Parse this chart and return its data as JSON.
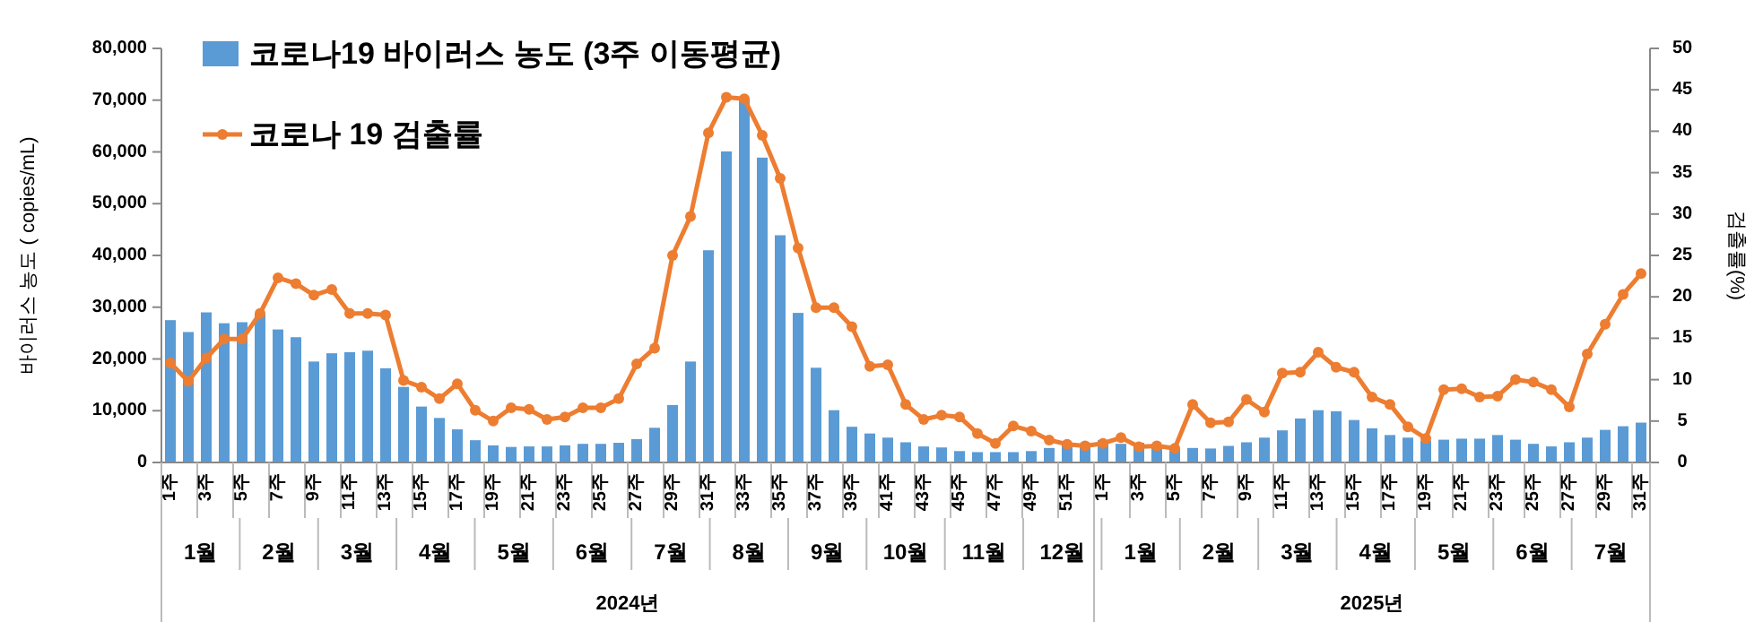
{
  "chart_data": {
    "type": "bar",
    "categories": [
      "1주",
      null,
      "3주",
      null,
      "5주",
      null,
      "7주",
      null,
      "9주",
      null,
      "11주",
      null,
      "13주",
      null,
      "15주",
      null,
      "17주",
      null,
      "19주",
      null,
      "21주",
      null,
      "23주",
      null,
      "25주",
      null,
      "27주",
      null,
      "29주",
      null,
      "31주",
      null,
      "33주",
      null,
      "35주",
      null,
      "37주",
      null,
      "39주",
      null,
      "41주",
      null,
      "43주",
      null,
      "45주",
      null,
      "47주",
      null,
      "49주",
      null,
      "51주",
      null,
      "1주",
      null,
      "3주",
      null,
      "5주",
      null,
      "7주",
      null,
      "9주",
      null,
      "11주",
      null,
      "13주",
      null,
      "15주",
      null,
      "17주",
      null,
      "19주",
      null,
      "21주",
      null,
      "23주",
      null,
      "25주",
      null,
      "27주",
      null,
      "29주",
      null,
      "31주"
    ],
    "series": [
      {
        "name": "코로나19 바이러스 농도 (3주 이동평균)",
        "color": "#5b9bd5",
        "values": [
          27500,
          25200,
          29000,
          26900,
          27100,
          28700,
          25700,
          24200,
          19500,
          21100,
          21300,
          21600,
          18200,
          14600,
          10800,
          8600,
          6400,
          4300,
          3300,
          3000,
          3100,
          3100,
          3300,
          3600,
          3600,
          3800,
          4500,
          6700,
          11100,
          19500,
          41000,
          60100,
          70400,
          58900,
          43900,
          28900,
          18300,
          10100,
          6900,
          5600,
          4800,
          3900,
          3100,
          2900,
          2200,
          2000,
          2000,
          2000,
          2200,
          2800,
          3600,
          3600,
          4300,
          3600,
          3800,
          3000,
          2800,
          2800,
          2700,
          3200,
          3900,
          4800,
          6200,
          8500,
          10100,
          9900,
          8200,
          6600,
          5300,
          4800,
          4200,
          4400,
          4600,
          4600,
          5300,
          4400,
          3600,
          3100,
          3900,
          4800,
          6300,
          7000,
          7700
        ]
      },
      {
        "name": "코로나 19 검출률",
        "type": "line",
        "axis": "y2",
        "color": "#ed7d31",
        "values": [
          12.0,
          9.8,
          12.6,
          14.9,
          14.9,
          18.0,
          22.3,
          21.6,
          20.2,
          20.9,
          18.0,
          18.0,
          17.8,
          9.9,
          9.1,
          7.7,
          9.5,
          6.3,
          5.0,
          6.6,
          6.4,
          5.2,
          5.5,
          6.6,
          6.6,
          7.7,
          11.9,
          13.8,
          25.0,
          29.7,
          39.8,
          44.1,
          43.9,
          39.5,
          34.3,
          25.9,
          18.7,
          18.7,
          16.4,
          11.6,
          11.8,
          7.0,
          5.2,
          5.7,
          5.5,
          3.5,
          2.3,
          4.4,
          3.8,
          2.7,
          2.2,
          2.0,
          2.3,
          3.0,
          1.9,
          2.0,
          1.7,
          7.0,
          4.8,
          4.9,
          7.6,
          6.1,
          10.8,
          10.9,
          13.3,
          11.5,
          10.9,
          7.9,
          7.0,
          4.3,
          2.9,
          8.8,
          8.9,
          7.9,
          8.0,
          10.0,
          9.7,
          8.8,
          6.7,
          13.1,
          16.7,
          20.3,
          22.8
        ]
      }
    ],
    "ylim": [
      0,
      80000
    ],
    "yticks": [
      0,
      {
        "value": 10000,
        "label": "10,000"
      },
      {
        "value": 20000,
        "label": "20,000"
      },
      {
        "value": 30000,
        "label": "30,000"
      },
      {
        "value": 40000,
        "label": "40,000"
      },
      {
        "value": 50000,
        "label": "50,000"
      },
      {
        "value": 60000,
        "label": "60,000"
      },
      {
        "value": 70000,
        "label": "70,000"
      },
      {
        "value": 80000,
        "label": "80,000"
      }
    ],
    "y2lim": [
      0,
      50
    ],
    "y2ticks": [
      0,
      5,
      10,
      15,
      20,
      25,
      30,
      35,
      40,
      45,
      50
    ],
    "ylabel": "바이러스 농도 ( copies/mL)",
    "y2label": "검출률(%)",
    "legend": "top left",
    "marker": "circle",
    "annotations": [
      "1월",
      "2월",
      "3월",
      "4월",
      "5월",
      "6월",
      "7월",
      "8월",
      "9월",
      "10월",
      "11월",
      "12월",
      "1월",
      "2월",
      "3월",
      "4월",
      "5월",
      "6월",
      "7월",
      "2024년",
      "2025년"
    ]
  }
}
